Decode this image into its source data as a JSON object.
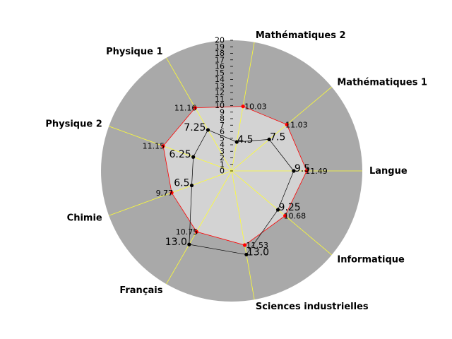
{
  "chart_data": {
    "type": "radar",
    "categories": [
      "Langue",
      "Mathématiques 1",
      "Mathématiques 2",
      "Physique 1",
      "Physique 2",
      "Chimie",
      "Français",
      "Sciences industrielles",
      "Informatique"
    ],
    "series": [
      {
        "values": [
          11.49,
          11.03,
          10.03,
          11.16,
          11.15,
          9.77,
          10.75,
          11.53,
          10.68
        ],
        "color": "#ff0000",
        "marker": "#ff0000"
      },
      {
        "values": [
          9.5,
          7.5,
          4.5,
          7.25,
          6.25,
          6.5,
          13.0,
          13.0,
          9.25
        ],
        "color": "#000000",
        "marker": "#000000"
      }
    ],
    "rticks": [
      "0",
      "1",
      "2",
      "3",
      "4",
      "5",
      "6",
      "7",
      "8",
      "9",
      "10",
      "11",
      "12",
      "13",
      "14",
      "15",
      "16",
      "17",
      "18",
      "19",
      "20"
    ],
    "rlim": [
      0,
      20
    ],
    "colors": {
      "outer_fill": "#a9a9a9",
      "inner_fill": "#d3d3d3",
      "spokes": "#ffff33"
    }
  }
}
